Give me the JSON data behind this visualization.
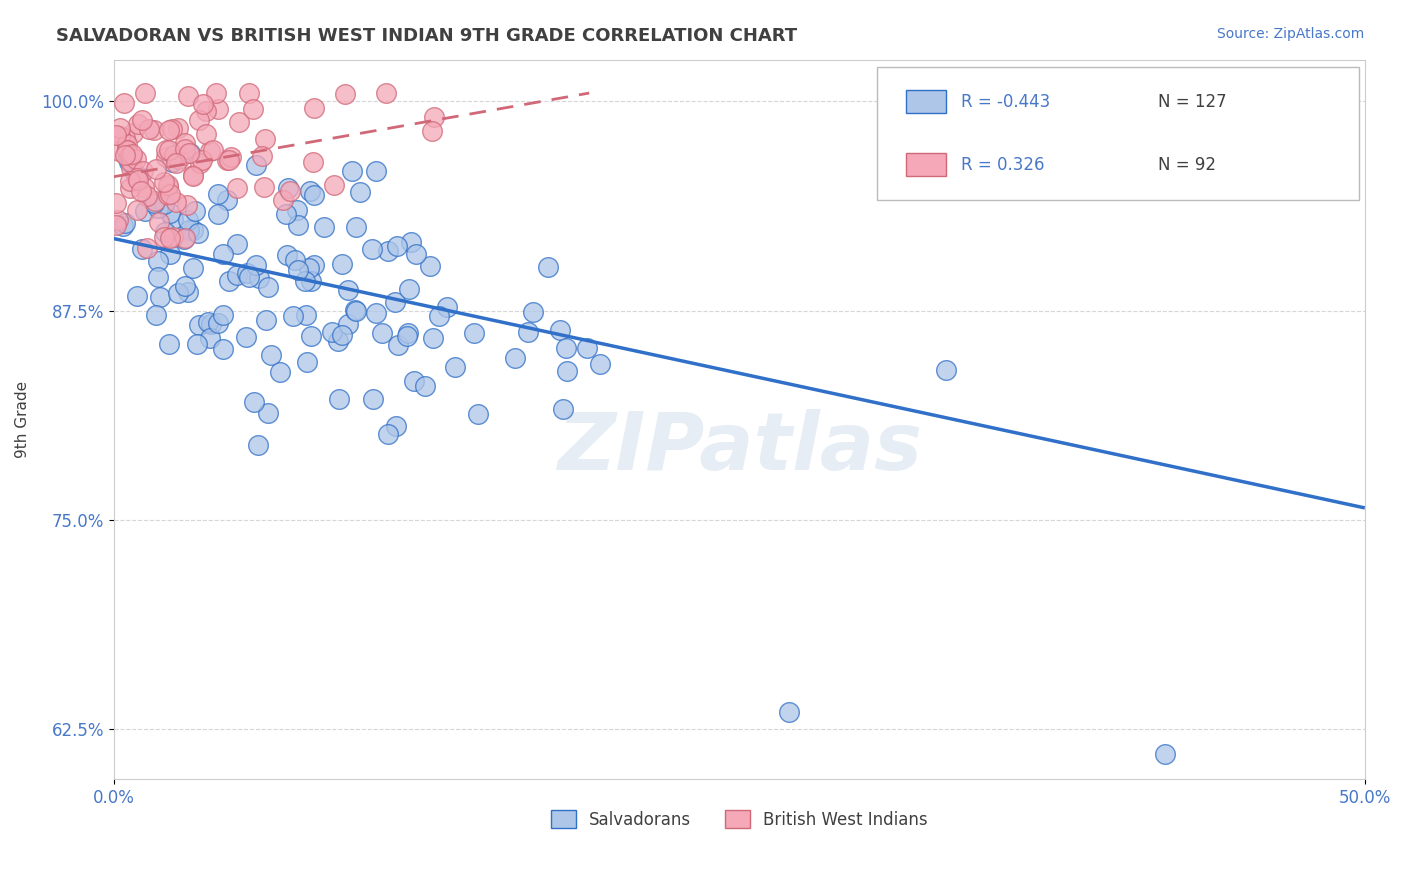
{
  "title": "SALVADORAN VS BRITISH WEST INDIAN 9TH GRADE CORRELATION CHART",
  "source_text": "Source: ZipAtlas.com",
  "ylabel": "9th Grade",
  "xlim": [
    0.0,
    0.5
  ],
  "ylim": [
    0.595,
    1.025
  ],
  "yticks": [
    0.625,
    0.75,
    0.875,
    1.0
  ],
  "ytick_labels": [
    "62.5%",
    "75.0%",
    "87.5%",
    "100.0%"
  ],
  "blue_R": "-0.443",
  "blue_N": "127",
  "pink_R": "0.326",
  "pink_N": "92",
  "blue_color": "#aec6e8",
  "pink_color": "#f4a8b8",
  "blue_line_color": "#3070c8",
  "pink_line_color": "#d06878",
  "legend_label_blue": "Salvadorans",
  "legend_label_pink": "British West Indians",
  "watermark": "ZIPatlas",
  "blue_line_x0": 0.0,
  "blue_line_y0": 0.918,
  "blue_line_x1": 0.5,
  "blue_line_y1": 0.757,
  "pink_line_x0": 0.0,
  "pink_line_y0": 0.955,
  "pink_line_x1": 0.19,
  "pink_line_y1": 1.005
}
